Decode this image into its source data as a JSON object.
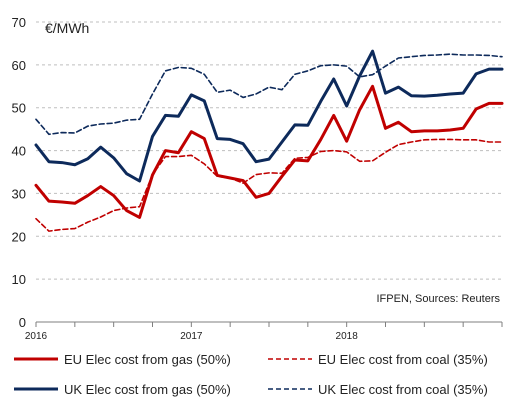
{
  "chart_data": {
    "type": "line",
    "unit_label": "€/MWh",
    "source": "IFPEN, Sources: Reuters",
    "x_tick_labels": [
      "2016",
      "2017",
      "2018"
    ],
    "y_ticks": [
      0,
      10,
      20,
      30,
      40,
      50,
      60,
      70
    ],
    "ylim": [
      0,
      70
    ],
    "grid": "horizontal dashed",
    "legend_position": "bottom",
    "x": [
      "2016-01",
      "2016-02",
      "2016-03",
      "2016-04",
      "2016-05",
      "2016-06",
      "2016-07",
      "2016-08",
      "2016-09",
      "2016-10",
      "2016-11",
      "2016-12",
      "2017-01",
      "2017-02",
      "2017-03",
      "2017-04",
      "2017-05",
      "2017-06",
      "2017-07",
      "2017-08",
      "2017-09",
      "2017-10",
      "2017-11",
      "2017-12",
      "2018-01",
      "2018-02",
      "2018-03",
      "2018-04",
      "2018-05",
      "2018-06",
      "2018-07",
      "2018-08",
      "2018-09",
      "2018-10",
      "2018-11",
      "2018-12",
      "2019-01"
    ],
    "series": [
      {
        "name": "EU Elec cost from gas (50%)",
        "color": "#c00000",
        "dash": "solid",
        "values": [
          31.9,
          28.2,
          28.0,
          27.7,
          29.5,
          31.6,
          29.5,
          26.0,
          24.4,
          34.3,
          40.0,
          39.5,
          44.4,
          42.8,
          34.2,
          33.6,
          33.0,
          29.1,
          30.0,
          34.0,
          37.8,
          37.6,
          42.6,
          48.2,
          42.2,
          49.5,
          55.0,
          45.2,
          46.6,
          44.4,
          44.6,
          44.6,
          44.8,
          45.2,
          49.7,
          51.0,
          51.0
        ]
      },
      {
        "name": "EU Elec cost from coal (35%)",
        "color": "#c00000",
        "dash": "dashed",
        "values": [
          24.1,
          21.2,
          21.6,
          21.8,
          23.3,
          24.5,
          26.0,
          26.6,
          26.9,
          34.4,
          38.6,
          38.6,
          38.9,
          36.9,
          34.0,
          33.6,
          32.4,
          34.4,
          34.8,
          34.7,
          38.2,
          38.4,
          39.8,
          40.0,
          39.7,
          37.5,
          37.6,
          39.6,
          41.4,
          42.0,
          42.5,
          42.6,
          42.6,
          42.5,
          42.5,
          42.0,
          42.0
        ]
      },
      {
        "name": "UK Elec cost from gas (50%)",
        "color": "#0d2a5b",
        "dash": "solid",
        "values": [
          41.3,
          37.4,
          37.2,
          36.7,
          38.1,
          40.8,
          38.3,
          34.6,
          32.9,
          43.3,
          48.2,
          48.0,
          53.0,
          51.6,
          42.8,
          42.6,
          41.6,
          37.4,
          38.0,
          42.0,
          46.0,
          45.9,
          51.5,
          56.7,
          50.4,
          57.4,
          63.2,
          53.4,
          54.8,
          52.8,
          52.7,
          52.9,
          53.2,
          53.4,
          57.9,
          59.0,
          59.0
        ]
      },
      {
        "name": "UK Elec cost from coal (35%)",
        "color": "#0d2a5b",
        "dash": "dashed",
        "values": [
          47.3,
          43.8,
          44.2,
          44.1,
          45.7,
          46.2,
          46.4,
          47.1,
          47.3,
          53.2,
          58.6,
          59.4,
          59.2,
          57.8,
          53.6,
          54.1,
          52.4,
          53.2,
          54.8,
          54.2,
          57.8,
          58.6,
          59.8,
          60.0,
          59.7,
          57.2,
          57.7,
          59.7,
          61.6,
          61.9,
          62.2,
          62.3,
          62.5,
          62.3,
          62.3,
          62.2,
          61.9
        ]
      }
    ]
  }
}
